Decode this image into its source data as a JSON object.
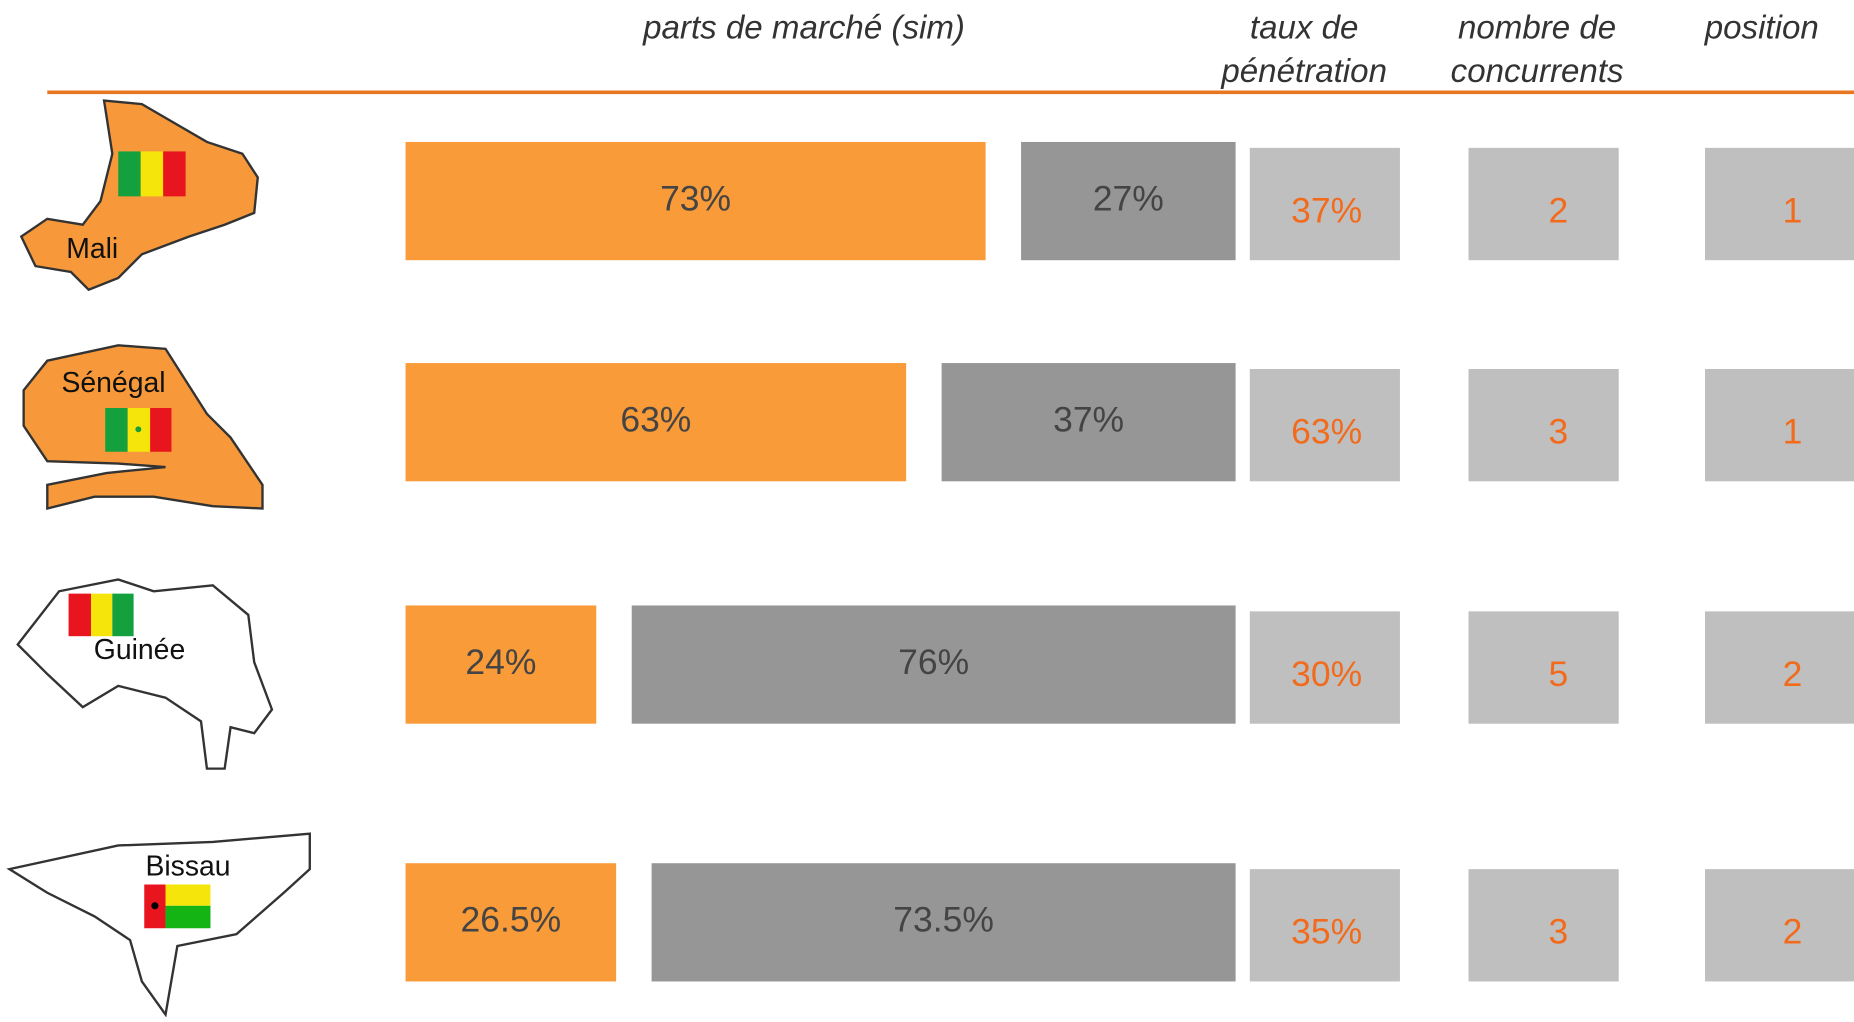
{
  "header": {
    "market_share": "parts de marché (sim)",
    "penetration": [
      "taux de",
      "pénétration"
    ],
    "competitors": [
      "nombre de",
      "concurrents"
    ],
    "position": "position"
  },
  "rows": [
    {
      "country": "Mali",
      "share": [
        73,
        27
      ],
      "share_labels": [
        "73%",
        "27%"
      ],
      "penetration": "37%",
      "competitors": 2,
      "position": 1
    },
    {
      "country": "Sénégal",
      "share": [
        63,
        37
      ],
      "share_labels": [
        "63%",
        "37%"
      ],
      "penetration": "63%",
      "competitors": 3,
      "position": 1
    },
    {
      "country": "Guinée",
      "share": [
        24,
        76
      ],
      "share_labels": [
        "24%",
        "76%"
      ],
      "penetration": "30%",
      "competitors": 5,
      "position": 2
    },
    {
      "country": "Bissau",
      "share": [
        26.5,
        73.5
      ],
      "share_labels": [
        "26.5%",
        "73.5%"
      ],
      "penetration": "35%",
      "competitors": 3,
      "position": 2
    }
  ]
}
